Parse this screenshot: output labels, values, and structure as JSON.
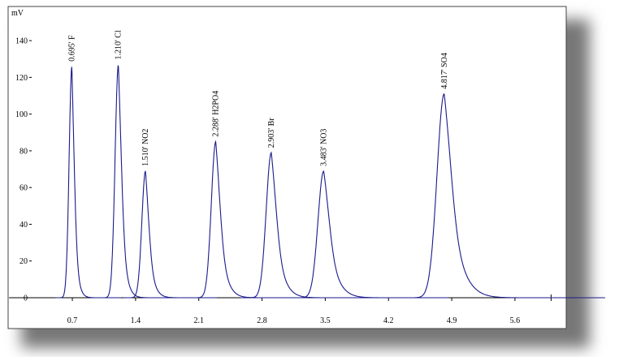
{
  "chart_data": {
    "type": "chromatogram",
    "y_unit": "mV",
    "x": [
      0.695,
      1.21,
      1.51,
      2.288,
      2.903,
      3.483,
      4.817
    ],
    "values": [
      126,
      127,
      69,
      85,
      79,
      69,
      111
    ],
    "annotations": [
      "0.695' F",
      "1.210' Cl",
      "1.510' NO2",
      "2.288' H2PO4",
      "2.903' Br",
      "3.483' NO3",
      "4.817' SO4"
    ],
    "color": "#1a1a8c",
    "xlim": [
      0,
      6.0
    ],
    "xticks": [
      0.7,
      1.4,
      2.1,
      2.8,
      3.5,
      4.2,
      4.9,
      5.6
    ],
    "ylim": [
      0,
      158.6
    ],
    "yticks": [
      0,
      20,
      40,
      60,
      80,
      100,
      120,
      140
    ]
  }
}
